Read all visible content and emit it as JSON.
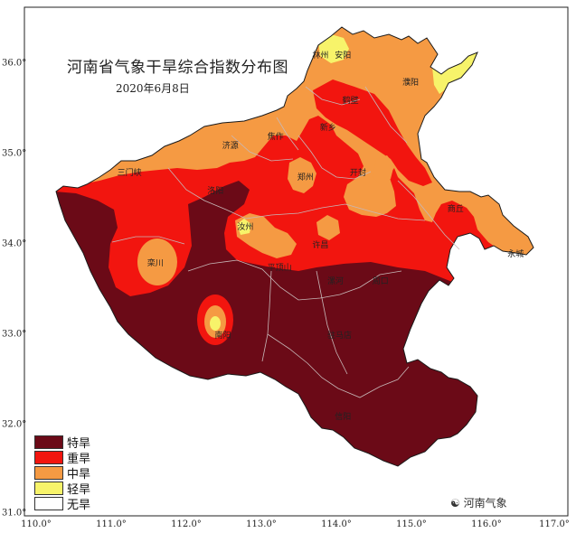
{
  "title": "河南省气象干旱综合指数分布图",
  "date": "2020年6月8日",
  "colors": {
    "extreme": "#6b0a17",
    "severe": "#f2150f",
    "moderate": "#f59a43",
    "light": "#f7f36a",
    "none": "#ffffff",
    "boundary": "#c7b8b8"
  },
  "legend": [
    {
      "label": "特旱",
      "color": "#6b0a17"
    },
    {
      "label": "重旱",
      "color": "#f2150f"
    },
    {
      "label": "中旱",
      "color": "#f59a43"
    },
    {
      "label": "轻旱",
      "color": "#f7f36a"
    },
    {
      "label": "无旱",
      "color": "#ffffff"
    }
  ],
  "x_ticks": [
    "110.0°",
    "111.0°",
    "112.0°",
    "113.0°",
    "114.0°",
    "115.0°",
    "116.0°",
    "117.0°"
  ],
  "y_ticks": [
    "36.0°",
    "35.0°",
    "34.0°",
    "33.0°",
    "32.0°",
    "31.0°"
  ],
  "watermark": "河南气象",
  "cities": [
    {
      "name": "林州",
      "lon": 113.8,
      "lat": 36.1
    },
    {
      "name": "安阳",
      "lon": 114.1,
      "lat": 36.1
    },
    {
      "name": "濮阳",
      "lon": 115.0,
      "lat": 35.8
    },
    {
      "name": "鹤壁",
      "lon": 114.2,
      "lat": 35.6
    },
    {
      "name": "新乡",
      "lon": 113.9,
      "lat": 35.3
    },
    {
      "name": "焦作",
      "lon": 113.2,
      "lat": 35.2
    },
    {
      "name": "济源",
      "lon": 112.6,
      "lat": 35.1
    },
    {
      "name": "三门峡",
      "lon": 111.2,
      "lat": 34.8
    },
    {
      "name": "洛阳",
      "lon": 112.4,
      "lat": 34.6
    },
    {
      "name": "郑州",
      "lon": 113.6,
      "lat": 34.75
    },
    {
      "name": "开封",
      "lon": 114.3,
      "lat": 34.8
    },
    {
      "name": "商丘",
      "lon": 115.6,
      "lat": 34.4
    },
    {
      "name": "许昌",
      "lon": 113.8,
      "lat": 34.0
    },
    {
      "name": "平顶山",
      "lon": 113.2,
      "lat": 33.75
    },
    {
      "name": "漯河",
      "lon": 114.0,
      "lat": 33.6
    },
    {
      "name": "周口",
      "lon": 114.6,
      "lat": 33.6
    },
    {
      "name": "栾川",
      "lon": 111.6,
      "lat": 33.8
    },
    {
      "name": "南阳",
      "lon": 112.5,
      "lat": 33.0
    },
    {
      "name": "驻马店",
      "lon": 114.0,
      "lat": 33.0
    },
    {
      "name": "信阳",
      "lon": 114.1,
      "lat": 32.1
    },
    {
      "name": "永城",
      "lon": 116.4,
      "lat": 33.9
    },
    {
      "name": "汝州",
      "lon": 112.8,
      "lat": 34.2
    }
  ]
}
